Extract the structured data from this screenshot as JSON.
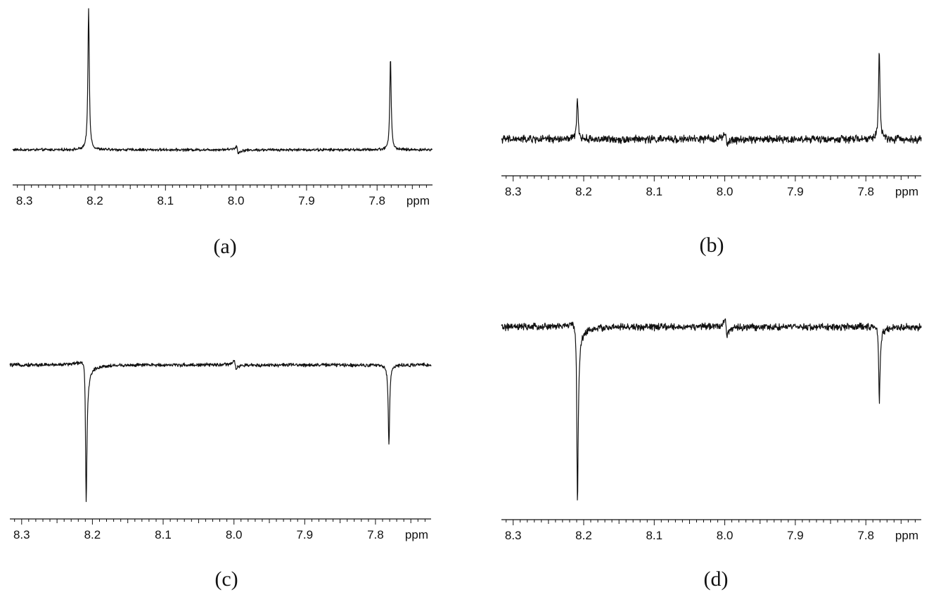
{
  "chart_data": [
    {
      "type": "line",
      "panel_label": "(a)",
      "x_unit": "ppm",
      "xlim": [
        8.32,
        7.78
      ],
      "x_reversed": true,
      "x_ticks": [
        8.3,
        8.2,
        8.1,
        8.0,
        7.9,
        7.8
      ],
      "x_tick_labels": [
        "8.3",
        "8.2",
        "8.1",
        "8.0",
        "7.9",
        "7.8"
      ],
      "y_axis_shown": false,
      "baseline": 0.0,
      "noise": 0.015,
      "features": [
        {
          "position": 8.209,
          "amplitude": 1.0,
          "shape": "absorption"
        },
        {
          "position": 7.781,
          "amplitude": 0.65,
          "shape": "absorption"
        },
        {
          "position": 7.998,
          "amplitude": 0.05,
          "shape": "dispersion"
        }
      ]
    },
    {
      "type": "line",
      "panel_label": "(b)",
      "x_unit": "ppm",
      "xlim": [
        8.32,
        7.78
      ],
      "x_reversed": true,
      "x_ticks": [
        8.3,
        8.2,
        8.1,
        8.0,
        7.9,
        7.8
      ],
      "x_tick_labels": [
        "8.3",
        "8.2",
        "8.1",
        "8.0",
        "7.9",
        "7.8"
      ],
      "y_axis_shown": false,
      "baseline": 0.0,
      "noise": 0.06,
      "features": [
        {
          "position": 8.209,
          "amplitude": 0.45,
          "shape": "absorption"
        },
        {
          "position": 7.781,
          "amplitude": 0.95,
          "shape": "absorption"
        },
        {
          "position": 7.998,
          "amplitude": 0.12,
          "shape": "dispersion"
        }
      ]
    },
    {
      "type": "line",
      "panel_label": "(c)",
      "x_unit": "ppm",
      "xlim": [
        8.32,
        7.78
      ],
      "x_reversed": true,
      "x_ticks": [
        8.3,
        8.2,
        8.1,
        8.0,
        7.9,
        7.8
      ],
      "x_tick_labels": [
        "8.3",
        "8.2",
        "8.1",
        "8.0",
        "7.9",
        "7.8"
      ],
      "y_axis_shown": false,
      "baseline": 0.0,
      "noise": 0.02,
      "features": [
        {
          "position": 8.209,
          "amplitude": -1.0,
          "shape": "absorption"
        },
        {
          "position": 8.209,
          "amplitude": 0.35,
          "shape": "dispersion"
        },
        {
          "position": 7.781,
          "amplitude": -0.6,
          "shape": "absorption"
        },
        {
          "position": 7.998,
          "amplitude": 0.06,
          "shape": "dispersion"
        }
      ]
    },
    {
      "type": "line",
      "panel_label": "(d)",
      "x_unit": "ppm",
      "xlim": [
        8.32,
        7.78
      ],
      "x_reversed": true,
      "x_ticks": [
        8.3,
        8.2,
        8.1,
        8.0,
        7.9,
        7.8
      ],
      "x_tick_labels": [
        "8.3",
        "8.2",
        "8.1",
        "8.0",
        "7.9",
        "7.8"
      ],
      "y_axis_shown": false,
      "baseline": 0.0,
      "noise": 0.03,
      "features": [
        {
          "position": 8.209,
          "amplitude": -1.0,
          "shape": "absorption"
        },
        {
          "position": 8.209,
          "amplitude": 0.3,
          "shape": "dispersion"
        },
        {
          "position": 7.781,
          "amplitude": -0.42,
          "shape": "absorption"
        },
        {
          "position": 7.781,
          "amplitude": 0.1,
          "shape": "dispersion"
        },
        {
          "position": 7.998,
          "amplitude": 0.1,
          "shape": "dispersion"
        }
      ]
    }
  ]
}
